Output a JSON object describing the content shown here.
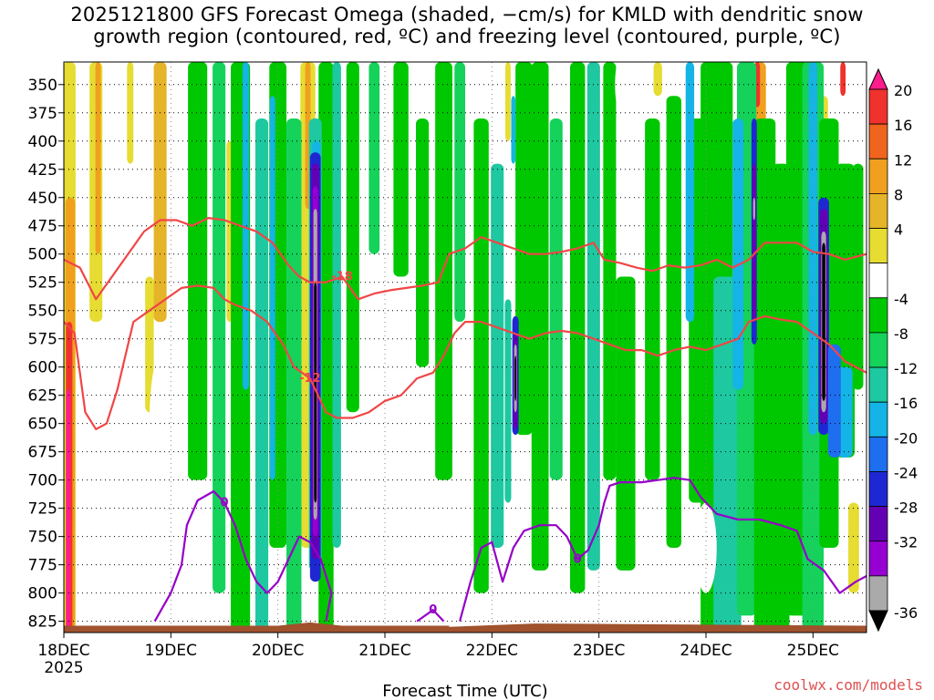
{
  "title": {
    "line1": "2025121800 GFS Forecast Omega (shaded, −cm/s) for KMLD with dendritic snow",
    "line2": "growth region (contoured, red, ºC) and freezing level (contoured, purple, ºC)"
  },
  "credit": "coolwx.com/models",
  "chart_data": {
    "type": "heatmap",
    "xlabel": "Forecast Time (UTC)",
    "ylabel": "",
    "x_ticks": [
      "18DEC",
      "19DEC",
      "20DEC",
      "21DEC",
      "22DEC",
      "23DEC",
      "24DEC",
      "25DEC"
    ],
    "x_tick_sub": "2025",
    "x_range_days": [
      0,
      7.5
    ],
    "y_ticks": [
      350,
      375,
      400,
      425,
      450,
      475,
      500,
      525,
      550,
      575,
      600,
      625,
      650,
      675,
      700,
      725,
      750,
      775,
      800,
      825
    ],
    "y_range_hpa": [
      330,
      835
    ],
    "y_axis": "pressure, inverted",
    "grid": true,
    "colorbar": {
      "ticks": [
        20,
        16,
        12,
        8,
        4,
        -4,
        -8,
        -12,
        -16,
        -20,
        -24,
        -28,
        -32,
        -36
      ],
      "colors": [
        "#ff1c8c",
        "#f0322d",
        "#f0641e",
        "#f0a01e",
        "#e6b428",
        "#e6dc32",
        "#ffffff",
        "#00c800",
        "#14d25a",
        "#1ec8a0",
        "#14b4e6",
        "#1e6ef0",
        "#1e28d2",
        "#6400b4",
        "#9600d2",
        "#aaaaaa",
        "#000000"
      ]
    },
    "contours": {
      "dgz_red": [
        {
          "label": "-18",
          "points": [
            [
              0.0,
              505
            ],
            [
              0.15,
              512
            ],
            [
              0.3,
              540
            ],
            [
              0.45,
              520
            ],
            [
              0.6,
              500
            ],
            [
              0.75,
              480
            ],
            [
              0.9,
              470
            ],
            [
              1.05,
              470
            ],
            [
              1.2,
              475
            ],
            [
              1.35,
              468
            ],
            [
              1.5,
              470
            ],
            [
              1.65,
              475
            ],
            [
              1.8,
              480
            ],
            [
              1.95,
              490
            ],
            [
              2.1,
              510
            ],
            [
              2.2,
              520
            ],
            [
              2.3,
              525
            ],
            [
              2.45,
              525
            ],
            [
              2.6,
              520
            ],
            [
              2.75,
              540
            ],
            [
              2.9,
              535
            ],
            [
              3.05,
              532
            ],
            [
              3.2,
              530
            ],
            [
              3.35,
              528
            ],
            [
              3.5,
              525
            ],
            [
              3.6,
              500
            ],
            [
              3.75,
              495
            ],
            [
              3.9,
              485
            ],
            [
              4.05,
              490
            ],
            [
              4.2,
              495
            ],
            [
              4.35,
              500
            ],
            [
              4.5,
              500
            ],
            [
              4.65,
              498
            ],
            [
              4.8,
              495
            ],
            [
              4.95,
              490
            ],
            [
              5.05,
              505
            ],
            [
              5.2,
              508
            ],
            [
              5.35,
              512
            ],
            [
              5.5,
              515
            ],
            [
              5.65,
              510
            ],
            [
              5.8,
              512
            ],
            [
              5.95,
              510
            ],
            [
              6.1,
              505
            ],
            [
              6.25,
              512
            ],
            [
              6.4,
              505
            ],
            [
              6.55,
              490
            ],
            [
              6.7,
              490
            ],
            [
              6.85,
              490
            ],
            [
              7.0,
              498
            ],
            [
              7.15,
              500
            ],
            [
              7.3,
              505
            ],
            [
              7.5,
              500
            ]
          ]
        },
        {
          "label": "-12",
          "points": [
            [
              0.0,
              560
            ],
            [
              0.1,
              570
            ],
            [
              0.2,
              640
            ],
            [
              0.3,
              655
            ],
            [
              0.4,
              650
            ],
            [
              0.5,
              620
            ],
            [
              0.55,
              600
            ],
            [
              0.65,
              560
            ],
            [
              0.8,
              550
            ],
            [
              0.95,
              540
            ],
            [
              1.1,
              530
            ],
            [
              1.25,
              528
            ],
            [
              1.4,
              530
            ],
            [
              1.5,
              540
            ],
            [
              1.6,
              545
            ],
            [
              1.75,
              550
            ],
            [
              1.9,
              560
            ],
            [
              2.05,
              580
            ],
            [
              2.15,
              600
            ],
            [
              2.3,
              610
            ],
            [
              2.45,
              640
            ],
            [
              2.55,
              645
            ],
            [
              2.7,
              645
            ],
            [
              2.85,
              640
            ],
            [
              3.0,
              630
            ],
            [
              3.15,
              625
            ],
            [
              3.3,
              610
            ],
            [
              3.45,
              605
            ],
            [
              3.55,
              590
            ],
            [
              3.65,
              570
            ],
            [
              3.75,
              560
            ],
            [
              3.9,
              560
            ],
            [
              4.05,
              565
            ],
            [
              4.2,
              570
            ],
            [
              4.35,
              575
            ],
            [
              4.5,
              570
            ],
            [
              4.65,
              568
            ],
            [
              4.8,
              570
            ],
            [
              4.95,
              575
            ],
            [
              5.1,
              580
            ],
            [
              5.25,
              585
            ],
            [
              5.4,
              585
            ],
            [
              5.55,
              590
            ],
            [
              5.7,
              585
            ],
            [
              5.85,
              582
            ],
            [
              6.0,
              585
            ],
            [
              6.15,
              580
            ],
            [
              6.3,
              575
            ],
            [
              6.4,
              560
            ],
            [
              6.55,
              555
            ],
            [
              6.7,
              558
            ],
            [
              6.85,
              560
            ],
            [
              7.0,
              570
            ],
            [
              7.15,
              580
            ],
            [
              7.3,
              595
            ],
            [
              7.5,
              605
            ]
          ]
        }
      ],
      "freezing_purple": [
        {
          "label": "0",
          "points": [
            [
              0.85,
              825
            ],
            [
              1.0,
              800
            ],
            [
              1.1,
              775
            ],
            [
              1.15,
              740
            ],
            [
              1.25,
              718
            ],
            [
              1.4,
              710
            ],
            [
              1.5,
              720
            ],
            [
              1.6,
              740
            ],
            [
              1.7,
              770
            ],
            [
              1.8,
              790
            ],
            [
              1.9,
              800
            ],
            [
              2.0,
              790
            ],
            [
              2.1,
              770
            ],
            [
              2.2,
              750
            ],
            [
              2.3,
              755
            ],
            [
              2.4,
              770
            ],
            [
              2.5,
              800
            ],
            [
              2.45,
              825
            ]
          ]
        },
        {
          "label": "0",
          "points": [
            [
              3.3,
              825
            ],
            [
              3.45,
              815
            ],
            [
              3.55,
              825
            ]
          ]
        },
        {
          "label": "0",
          "points": [
            [
              3.7,
              825
            ],
            [
              3.8,
              790
            ],
            [
              3.9,
              760
            ],
            [
              4.0,
              755
            ],
            [
              4.1,
              790
            ],
            [
              4.2,
              760
            ],
            [
              4.3,
              745
            ],
            [
              4.45,
              740
            ],
            [
              4.6,
              740
            ],
            [
              4.7,
              750
            ],
            [
              4.8,
              770
            ],
            [
              4.9,
              762
            ],
            [
              5.0,
              740
            ],
            [
              5.05,
              720
            ],
            [
              5.1,
              705
            ],
            [
              5.2,
              702
            ],
            [
              5.4,
              702
            ],
            [
              5.55,
              700
            ],
            [
              5.7,
              698
            ],
            [
              5.85,
              700
            ],
            [
              5.95,
              715
            ],
            [
              6.1,
              730
            ],
            [
              6.3,
              735
            ],
            [
              6.5,
              735
            ],
            [
              6.7,
              740
            ],
            [
              6.85,
              745
            ],
            [
              6.95,
              770
            ],
            [
              7.1,
              780
            ],
            [
              7.25,
              800
            ],
            [
              7.4,
              790
            ],
            [
              7.5,
              785
            ]
          ]
        }
      ]
    }
  }
}
